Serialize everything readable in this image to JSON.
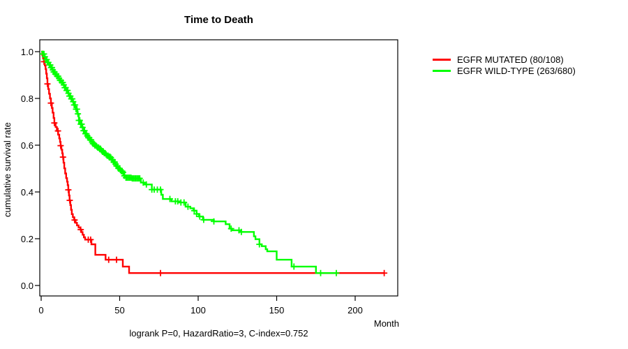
{
  "chart": {
    "title": "Time to Death",
    "xlabel": "Month",
    "ylabel": "cumulative survival rate",
    "annotation": "logrank P=0, HazardRatio=3, C-index=0.752"
  },
  "chart_data": {
    "type": "line",
    "subtype": "kaplan-meier-step-curves",
    "title": "Time to Death",
    "xlabel": "Month",
    "ylabel": "cumulative survival rate",
    "annotation": "logrank P=0, HazardRatio=3, C-index=0.752",
    "grid": false,
    "legend_position": "right-outside",
    "axis_color": "#000000",
    "xlim": [
      0,
      228
    ],
    "ylim": [
      0.0,
      1.0
    ],
    "xticks": [
      0,
      50,
      100,
      150,
      200
    ],
    "xtick_labels": [
      "0",
      "50",
      "100",
      "150",
      "200"
    ],
    "yticks": [
      0.0,
      0.2,
      0.4,
      0.6,
      0.8,
      1.0
    ],
    "ytick_labels": [
      "0.0",
      "0.2",
      "0.4",
      "0.6",
      "0.8",
      "1.0"
    ],
    "series": [
      {
        "name": "EGFR MUTATED (80/108)",
        "color": "#ff0000",
        "steps": [
          [
            0,
            1.0
          ],
          [
            0.7,
            0.985
          ],
          [
            1.2,
            0.971
          ],
          [
            1.8,
            0.957
          ],
          [
            2.3,
            0.941
          ],
          [
            2.8,
            0.925
          ],
          [
            3.2,
            0.906
          ],
          [
            3.6,
            0.886
          ],
          [
            4.0,
            0.862
          ],
          [
            4.5,
            0.84
          ],
          [
            5.0,
            0.82
          ],
          [
            5.6,
            0.8
          ],
          [
            6.2,
            0.78
          ],
          [
            6.8,
            0.759
          ],
          [
            7.3,
            0.739
          ],
          [
            7.9,
            0.716
          ],
          [
            8.4,
            0.695
          ],
          [
            9.2,
            0.678
          ],
          [
            10.0,
            0.661
          ],
          [
            10.8,
            0.645
          ],
          [
            11.5,
            0.629
          ],
          [
            12.0,
            0.614
          ],
          [
            12.4,
            0.598
          ],
          [
            12.9,
            0.581
          ],
          [
            13.4,
            0.565
          ],
          [
            13.8,
            0.549
          ],
          [
            14.2,
            0.525
          ],
          [
            14.7,
            0.501
          ],
          [
            15.3,
            0.479
          ],
          [
            15.9,
            0.459
          ],
          [
            16.5,
            0.444
          ],
          [
            16.9,
            0.429
          ],
          [
            17.3,
            0.409
          ],
          [
            17.7,
            0.385
          ],
          [
            18.1,
            0.364
          ],
          [
            18.6,
            0.344
          ],
          [
            19.0,
            0.324
          ],
          [
            19.5,
            0.305
          ],
          [
            20.2,
            0.292
          ],
          [
            21.0,
            0.28
          ],
          [
            21.9,
            0.268
          ],
          [
            22.8,
            0.257
          ],
          [
            23.8,
            0.248
          ],
          [
            25.0,
            0.239
          ],
          [
            25.7,
            0.228
          ],
          [
            26.4,
            0.217
          ],
          [
            27.2,
            0.206
          ],
          [
            28.0,
            0.196
          ],
          [
            32.0,
            0.176
          ],
          [
            34.5,
            0.131
          ],
          [
            41.0,
            0.11
          ],
          [
            52.0,
            0.081
          ],
          [
            56.0,
            0.053
          ]
        ],
        "end_month": 218.5,
        "censor_marks": [
          1.8,
          4.0,
          6.2,
          8.4,
          10.7,
          12.4,
          13.9,
          17.3,
          18.2,
          21.3,
          25.2,
          30.0,
          31.5,
          43.0,
          48.0,
          76.0,
          218.5
        ]
      },
      {
        "name": "EGFR WILD-TYPE (263/680)",
        "color": "#00ff00",
        "steps": [
          [
            0,
            1.0
          ],
          [
            1,
            0.99
          ],
          [
            2,
            0.978
          ],
          [
            3,
            0.966
          ],
          [
            4,
            0.954
          ],
          [
            5,
            0.943
          ],
          [
            6,
            0.932
          ],
          [
            7,
            0.922
          ],
          [
            8,
            0.913
          ],
          [
            9,
            0.904
          ],
          [
            10,
            0.895
          ],
          [
            11,
            0.886
          ],
          [
            12,
            0.877
          ],
          [
            13,
            0.868
          ],
          [
            14,
            0.858
          ],
          [
            15,
            0.846
          ],
          [
            16,
            0.834
          ],
          [
            17,
            0.822
          ],
          [
            18,
            0.81
          ],
          [
            19,
            0.798
          ],
          [
            20,
            0.786
          ],
          [
            21,
            0.772
          ],
          [
            22,
            0.754
          ],
          [
            23,
            0.734
          ],
          [
            24,
            0.706
          ],
          [
            25,
            0.69
          ],
          [
            26,
            0.676
          ],
          [
            27,
            0.662
          ],
          [
            28,
            0.649
          ],
          [
            29,
            0.64
          ],
          [
            30,
            0.632
          ],
          [
            31,
            0.623
          ],
          [
            32,
            0.614
          ],
          [
            33,
            0.606
          ],
          [
            34,
            0.599
          ],
          [
            35,
            0.594
          ],
          [
            36,
            0.59
          ],
          [
            37,
            0.585
          ],
          [
            38,
            0.578
          ],
          [
            39,
            0.572
          ],
          [
            40,
            0.566
          ],
          [
            41,
            0.56
          ],
          [
            42,
            0.555
          ],
          [
            43,
            0.551
          ],
          [
            44,
            0.547
          ],
          [
            45,
            0.537
          ],
          [
            46,
            0.528
          ],
          [
            47,
            0.519
          ],
          [
            48,
            0.511
          ],
          [
            49,
            0.501
          ],
          [
            50,
            0.494
          ],
          [
            51,
            0.489
          ],
          [
            52,
            0.484
          ],
          [
            53,
            0.469
          ],
          [
            54,
            0.461
          ],
          [
            58,
            0.458
          ],
          [
            63.5,
            0.44
          ],
          [
            66,
            0.432
          ],
          [
            70.5,
            0.41
          ],
          [
            76.5,
            0.388
          ],
          [
            77.5,
            0.37
          ],
          [
            83,
            0.36
          ],
          [
            88,
            0.355
          ],
          [
            92,
            0.337
          ],
          [
            95,
            0.33
          ],
          [
            97,
            0.32
          ],
          [
            99,
            0.306
          ],
          [
            100.5,
            0.295
          ],
          [
            103,
            0.281
          ],
          [
            110,
            0.274
          ],
          [
            117.5,
            0.262
          ],
          [
            120,
            0.243
          ],
          [
            121.5,
            0.236
          ],
          [
            127,
            0.229
          ],
          [
            135.5,
            0.21
          ],
          [
            136.5,
            0.198
          ],
          [
            139,
            0.176
          ],
          [
            140.5,
            0.168
          ],
          [
            143,
            0.155
          ],
          [
            144,
            0.146
          ],
          [
            150,
            0.11
          ],
          [
            159.5,
            0.081
          ],
          [
            175,
            0.053
          ]
        ],
        "end_month": 188,
        "censor_marks": [
          1.2,
          1.8,
          2.4,
          3,
          3.5,
          4,
          4.6,
          5.2,
          5.8,
          6.3,
          6.9,
          7.4,
          8,
          8.5,
          9,
          9.6,
          10.2,
          10.8,
          11.4,
          12,
          12.6,
          13.2,
          13.8,
          14.4,
          15,
          15.6,
          16.2,
          16.8,
          17.4,
          18,
          18.6,
          19.2,
          19.8,
          20.4,
          21,
          21.6,
          22.2,
          22.8,
          23.4,
          24,
          24.6,
          25.2,
          25.8,
          26.4,
          27,
          27.6,
          28.2,
          28.8,
          29.4,
          30,
          30.6,
          31.2,
          31.8,
          32.4,
          33,
          33.6,
          34.2,
          34.8,
          35.4,
          36,
          36.6,
          37.2,
          37.8,
          38.4,
          39,
          39.6,
          40.2,
          40.8,
          41.4,
          42,
          42.6,
          43.2,
          43.8,
          44.4,
          45,
          45.6,
          46.2,
          46.8,
          47.4,
          48,
          48.6,
          49.2,
          49.8,
          50.4,
          51,
          51.6,
          52.2,
          53,
          54,
          54.8,
          55.6,
          56.4,
          57.2,
          58,
          58.8,
          59.6,
          60.4,
          61.2,
          62,
          62.8,
          65,
          67,
          70.5,
          72,
          74,
          76,
          82,
          85.5,
          87,
          89,
          91,
          93.5,
          97.5,
          99,
          101,
          103.5,
          110,
          121,
          126,
          127.5,
          139,
          161,
          178,
          188
        ]
      }
    ]
  }
}
